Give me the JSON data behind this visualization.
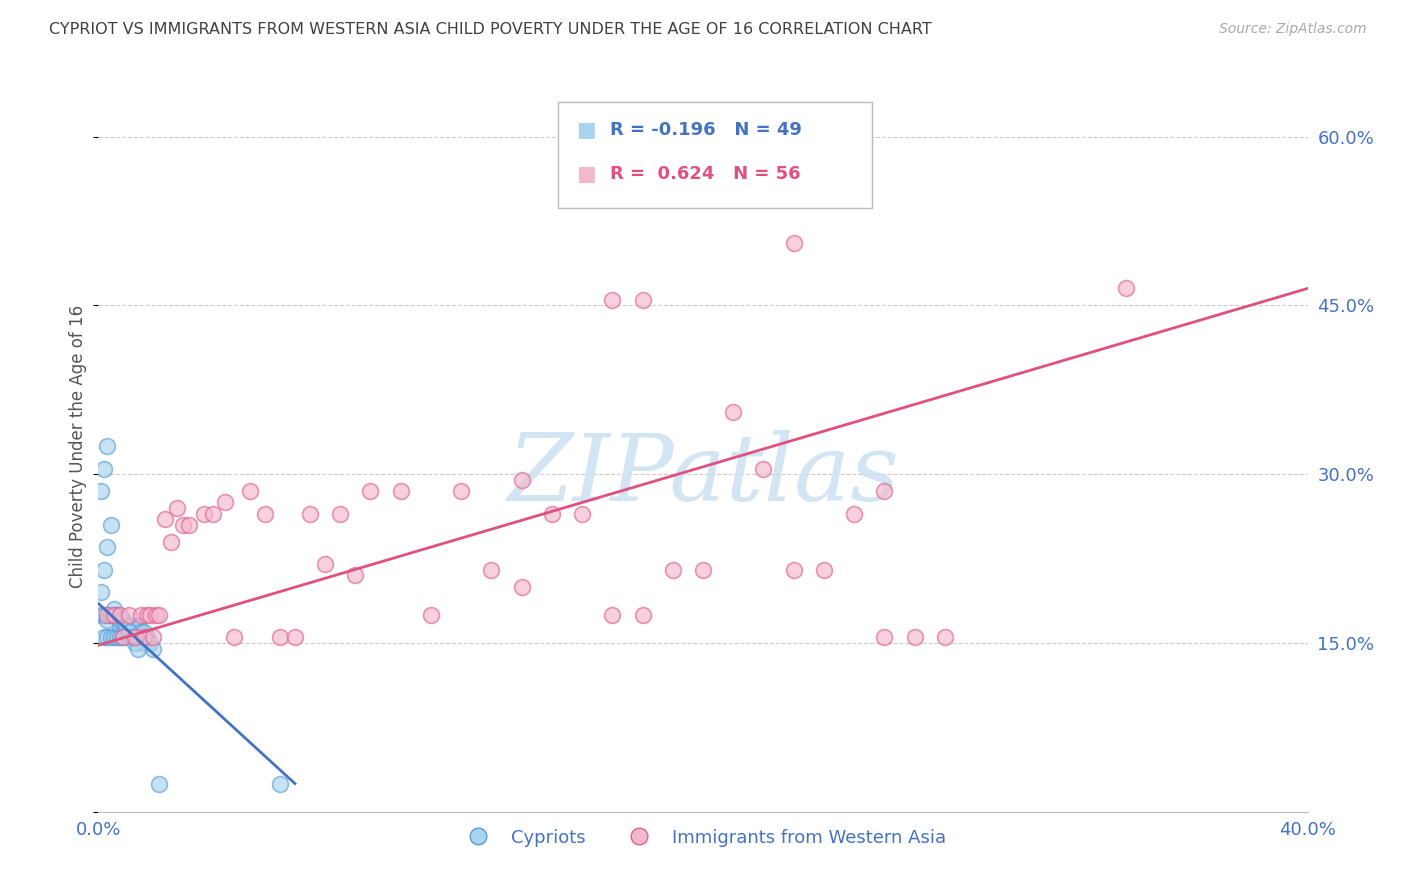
{
  "title": "CYPRIOT VS IMMIGRANTS FROM WESTERN ASIA CHILD POVERTY UNDER THE AGE OF 16 CORRELATION CHART",
  "source": "Source: ZipAtlas.com",
  "ylabel": "Child Poverty Under the Age of 16",
  "xlim": [
    0.0,
    0.4
  ],
  "ylim": [
    0.0,
    0.65
  ],
  "xticks": [
    0.0,
    0.05,
    0.1,
    0.15,
    0.2,
    0.25,
    0.3,
    0.35,
    0.4
  ],
  "yticks": [
    0.0,
    0.15,
    0.3,
    0.45,
    0.6
  ],
  "ytick_labels": [
    "",
    "15.0%",
    "30.0%",
    "45.0%",
    "60.0%"
  ],
  "xtick_labels": [
    "0.0%",
    "",
    "",
    "",
    "",
    "",
    "",
    "",
    "40.0%"
  ],
  "legend_label1": "Cypriots",
  "legend_label2": "Immigrants from Western Asia",
  "r1": -0.196,
  "n1": 49,
  "r2": 0.624,
  "n2": 56,
  "color_blue_fill": "#a8d4f0",
  "color_blue_edge": "#5b9bd5",
  "color_blue_line": "#4472c4",
  "color_pink_fill": "#f4b8cc",
  "color_pink_edge": "#e06090",
  "color_pink_line": "#e05080",
  "watermark": "ZIPatlas",
  "watermark_color": "#cce0f0",
  "title_color": "#404040",
  "axis_label_color": "#4472c4",
  "blue_scatter_x": [
    0.001,
    0.002,
    0.002,
    0.003,
    0.003,
    0.004,
    0.004,
    0.005,
    0.005,
    0.006,
    0.006,
    0.007,
    0.007,
    0.008,
    0.008,
    0.009,
    0.01,
    0.01,
    0.011,
    0.011,
    0.012,
    0.012,
    0.013,
    0.013,
    0.014,
    0.015,
    0.015,
    0.016,
    0.017,
    0.018,
    0.001,
    0.002,
    0.003,
    0.004,
    0.005,
    0.006,
    0.007,
    0.008,
    0.009,
    0.01,
    0.011,
    0.012,
    0.013,
    0.02,
    0.001,
    0.002,
    0.003,
    0.004,
    0.06
  ],
  "blue_scatter_y": [
    0.175,
    0.175,
    0.155,
    0.17,
    0.155,
    0.175,
    0.155,
    0.175,
    0.155,
    0.175,
    0.155,
    0.165,
    0.155,
    0.165,
    0.155,
    0.165,
    0.165,
    0.155,
    0.165,
    0.155,
    0.165,
    0.155,
    0.165,
    0.155,
    0.16,
    0.16,
    0.15,
    0.155,
    0.15,
    0.145,
    0.285,
    0.305,
    0.325,
    0.175,
    0.18,
    0.175,
    0.17,
    0.17,
    0.165,
    0.16,
    0.155,
    0.15,
    0.145,
    0.025,
    0.195,
    0.215,
    0.235,
    0.255,
    0.025
  ],
  "pink_scatter_x": [
    0.003,
    0.005,
    0.007,
    0.008,
    0.01,
    0.012,
    0.014,
    0.015,
    0.016,
    0.017,
    0.018,
    0.019,
    0.02,
    0.022,
    0.024,
    0.026,
    0.028,
    0.03,
    0.035,
    0.038,
    0.042,
    0.045,
    0.05,
    0.055,
    0.06,
    0.065,
    0.07,
    0.075,
    0.08,
    0.085,
    0.09,
    0.1,
    0.11,
    0.12,
    0.13,
    0.14,
    0.15,
    0.16,
    0.17,
    0.18,
    0.19,
    0.2,
    0.21,
    0.22,
    0.23,
    0.24,
    0.25,
    0.26,
    0.27,
    0.28,
    0.17,
    0.18,
    0.26,
    0.34,
    0.23,
    0.14
  ],
  "pink_scatter_y": [
    0.175,
    0.175,
    0.175,
    0.155,
    0.175,
    0.155,
    0.175,
    0.155,
    0.175,
    0.175,
    0.155,
    0.175,
    0.175,
    0.26,
    0.24,
    0.27,
    0.255,
    0.255,
    0.265,
    0.265,
    0.275,
    0.155,
    0.285,
    0.265,
    0.155,
    0.155,
    0.265,
    0.22,
    0.265,
    0.21,
    0.285,
    0.285,
    0.175,
    0.285,
    0.215,
    0.2,
    0.265,
    0.265,
    0.175,
    0.175,
    0.215,
    0.215,
    0.355,
    0.305,
    0.215,
    0.215,
    0.265,
    0.155,
    0.155,
    0.155,
    0.455,
    0.455,
    0.285,
    0.465,
    0.505,
    0.295
  ],
  "blue_line_x": [
    0.0,
    0.065
  ],
  "blue_line_y": [
    0.185,
    0.025
  ],
  "pink_line_x": [
    0.0,
    0.4
  ],
  "pink_line_y": [
    0.148,
    0.465
  ]
}
